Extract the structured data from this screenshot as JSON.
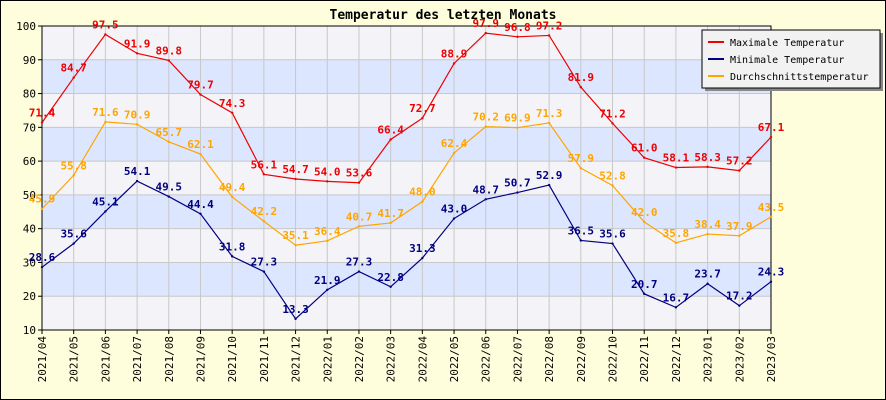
{
  "chart_data": {
    "type": "line",
    "title": "Temperatur des letzten Monats",
    "xlabel": "",
    "ylabel": "",
    "ylim": [
      10,
      100
    ],
    "yticks": [
      10,
      20,
      30,
      40,
      50,
      60,
      70,
      80,
      90,
      100
    ],
    "grid": true,
    "legend_position": "top-right",
    "background": "#fefedc",
    "band_colors": [
      "#dde6ff",
      "#f4f4f8"
    ],
    "x": [
      "2021/04",
      "2021/05",
      "2021/06",
      "2021/07",
      "2021/08",
      "2021/09",
      "2021/10",
      "2021/11",
      "2021/12",
      "2022/01",
      "2022/02",
      "2022/03",
      "2022/04",
      "2022/05",
      "2022/06",
      "2022/07",
      "2022/08",
      "2022/09",
      "2022/10",
      "2022/11",
      "2022/12",
      "2023/01",
      "2023/02",
      "2023/03"
    ],
    "series": [
      {
        "name": "Maximale Temperatur",
        "color": "#ee0000",
        "values": [
          71.4,
          84.7,
          97.5,
          91.9,
          89.8,
          79.7,
          74.3,
          56.1,
          54.7,
          54.0,
          53.6,
          66.4,
          72.7,
          88.9,
          97.9,
          96.8,
          97.2,
          81.9,
          71.2,
          61.0,
          58.1,
          58.3,
          57.2,
          67.1
        ],
        "labels": [
          "71.4",
          "84.7",
          "97.5",
          "91.9",
          "89.8",
          "79.7",
          "74.3",
          "56.1",
          "54.7",
          "54.0",
          "53.6",
          "66.4",
          "72.7",
          "88.9",
          "97.9",
          "96.8",
          "97.2",
          "81.9",
          "71.2",
          "61.0",
          "58.1",
          "58.3",
          "57.2",
          "67.1"
        ]
      },
      {
        "name": "Minimale Temperatur",
        "color": "#000080",
        "values": [
          28.6,
          35.6,
          45.1,
          54.1,
          49.5,
          44.4,
          31.8,
          27.3,
          13.3,
          21.9,
          27.3,
          22.8,
          31.3,
          43.0,
          48.7,
          50.7,
          52.9,
          36.5,
          35.6,
          20.7,
          16.7,
          23.7,
          17.2,
          24.3
        ],
        "labels": [
          "28.6",
          "35.6",
          "45.1",
          "54.1",
          "49.5",
          "44.4",
          "31.8",
          "27.3",
          "13.3",
          "21.9",
          "27.3",
          "22.8",
          "31.3",
          "43.0",
          "48.7",
          "50.7",
          "52.9",
          "36.5",
          "35.6",
          "20.7",
          "16.7",
          "23.7",
          "17.2",
          "24.3"
        ]
      },
      {
        "name": "Durchschnittstemperatur",
        "color": "#ffa500",
        "values": [
          45.9,
          55.8,
          71.6,
          70.9,
          65.7,
          62.1,
          49.4,
          42.2,
          35.1,
          36.4,
          40.7,
          41.7,
          48.0,
          62.4,
          70.2,
          69.9,
          71.3,
          57.9,
          52.8,
          42.0,
          35.8,
          38.4,
          37.9,
          43.5
        ],
        "labels": [
          "45.9",
          "55.8",
          "71.6",
          "70.9",
          "65.7",
          "62.1",
          "49.4",
          "42.2",
          "35.1",
          "36.4",
          "40.7",
          "41.7",
          "48.0",
          "62.4",
          "70.2",
          "69.9",
          "71.3",
          "57.9",
          "52.8",
          "42.0",
          "35.8",
          "38.4",
          "37.9",
          "43.5"
        ]
      }
    ]
  }
}
